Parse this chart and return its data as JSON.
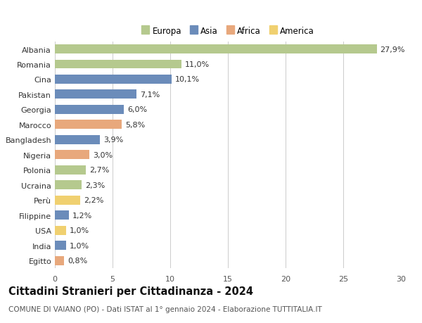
{
  "categories": [
    "Albania",
    "Romania",
    "Cina",
    "Pakistan",
    "Georgia",
    "Marocco",
    "Bangladesh",
    "Nigeria",
    "Polonia",
    "Ucraina",
    "Perù",
    "Filippine",
    "USA",
    "India",
    "Egitto"
  ],
  "values": [
    27.9,
    11.0,
    10.1,
    7.1,
    6.0,
    5.8,
    3.9,
    3.0,
    2.7,
    2.3,
    2.2,
    1.2,
    1.0,
    1.0,
    0.8
  ],
  "labels": [
    "27,9%",
    "11,0%",
    "10,1%",
    "7,1%",
    "6,0%",
    "5,8%",
    "3,9%",
    "3,0%",
    "2,7%",
    "2,3%",
    "2,2%",
    "1,2%",
    "1,0%",
    "1,0%",
    "0,8%"
  ],
  "continents": [
    "Europa",
    "Europa",
    "Asia",
    "Asia",
    "Asia",
    "Africa",
    "Asia",
    "Africa",
    "Europa",
    "Europa",
    "America",
    "Asia",
    "America",
    "Asia",
    "Africa"
  ],
  "continent_colors": {
    "Europa": "#b5c98e",
    "Asia": "#6b8cba",
    "Africa": "#e8a87c",
    "America": "#f0d070"
  },
  "legend_order": [
    "Europa",
    "Asia",
    "Africa",
    "America"
  ],
  "xlim": [
    0,
    30
  ],
  "xticks": [
    0,
    5,
    10,
    15,
    20,
    25,
    30
  ],
  "title": "Cittadini Stranieri per Cittadinanza - 2024",
  "subtitle": "COMUNE DI VAIANO (PO) - Dati ISTAT al 1° gennaio 2024 - Elaborazione TUTTITALIA.IT",
  "background_color": "#ffffff",
  "grid_color": "#cccccc",
  "bar_height": 0.6,
  "label_fontsize": 8,
  "tick_fontsize": 8,
  "title_fontsize": 10.5,
  "subtitle_fontsize": 7.5
}
